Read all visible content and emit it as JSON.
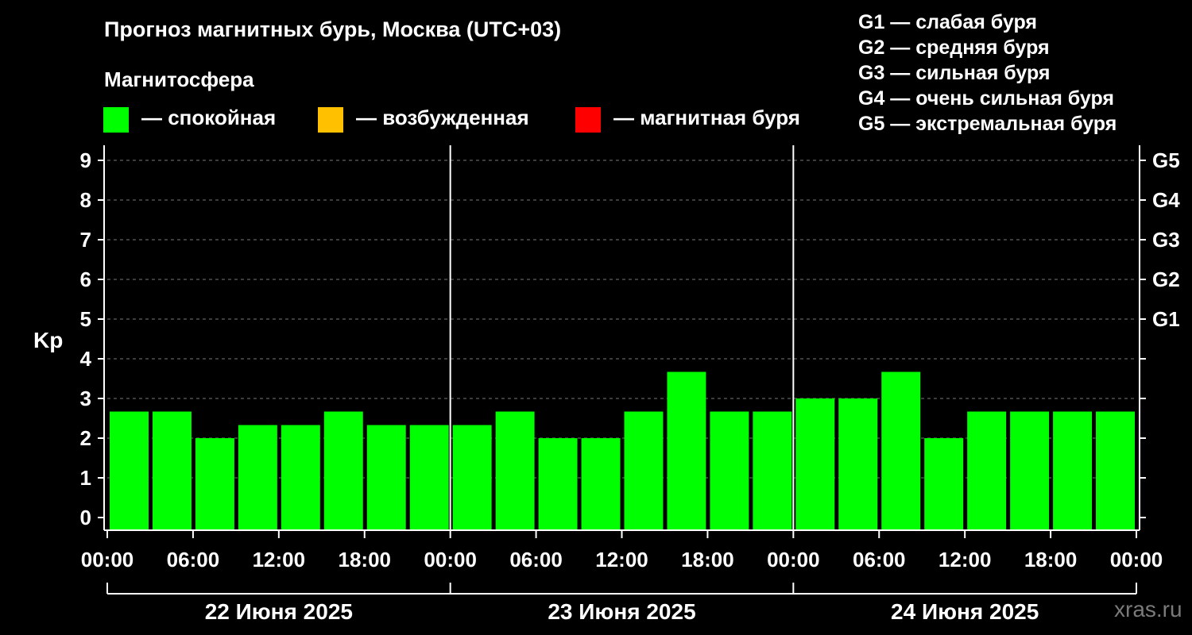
{
  "title": "Прогноз магнитных бурь, Москва (UTC+03)",
  "magnetosphere_title": "Магнитосфера",
  "legend": [
    {
      "label": "— спокойная",
      "color": "#00ff00"
    },
    {
      "label": "— возбужденная",
      "color": "#ffc000"
    },
    {
      "label": "— магнитная буря",
      "color": "#ff0000"
    }
  ],
  "g_legend": [
    "G1 — слабая буря",
    "G2 — средняя буря",
    "G3 — сильная буря",
    "G4 — очень сильная буря",
    "G5 — экстремальная буря"
  ],
  "watermark": "xras.ru",
  "chart_data": {
    "type": "bar",
    "ylabel": "Kp",
    "ylim": [
      0,
      9
    ],
    "yticks": [
      "0",
      "1",
      "2",
      "3",
      "4",
      "5",
      "6",
      "7",
      "8",
      "9"
    ],
    "right_ticks": [
      {
        "value": 5,
        "label": "G1"
      },
      {
        "value": 6,
        "label": "G2"
      },
      {
        "value": 7,
        "label": "G3"
      },
      {
        "value": 8,
        "label": "G4"
      },
      {
        "value": 9,
        "label": "G5"
      }
    ],
    "xtick_labels": [
      "00:00",
      "06:00",
      "12:00",
      "18:00",
      "00:00",
      "06:00",
      "12:00",
      "18:00",
      "00:00",
      "06:00",
      "12:00",
      "18:00",
      "00:00"
    ],
    "days": [
      "22 Июня 2025",
      "23 Июня 2025",
      "24 Июня 2025"
    ],
    "bar_color": "#00ff00",
    "grid": "dashed horizontal",
    "values": [
      2.67,
      2.67,
      2.0,
      2.33,
      2.33,
      2.67,
      2.33,
      2.33,
      2.33,
      2.67,
      2.0,
      2.0,
      2.67,
      3.67,
      2.67,
      2.67,
      3.0,
      3.0,
      3.67,
      2.0,
      2.67,
      2.67,
      2.67,
      2.67
    ]
  }
}
